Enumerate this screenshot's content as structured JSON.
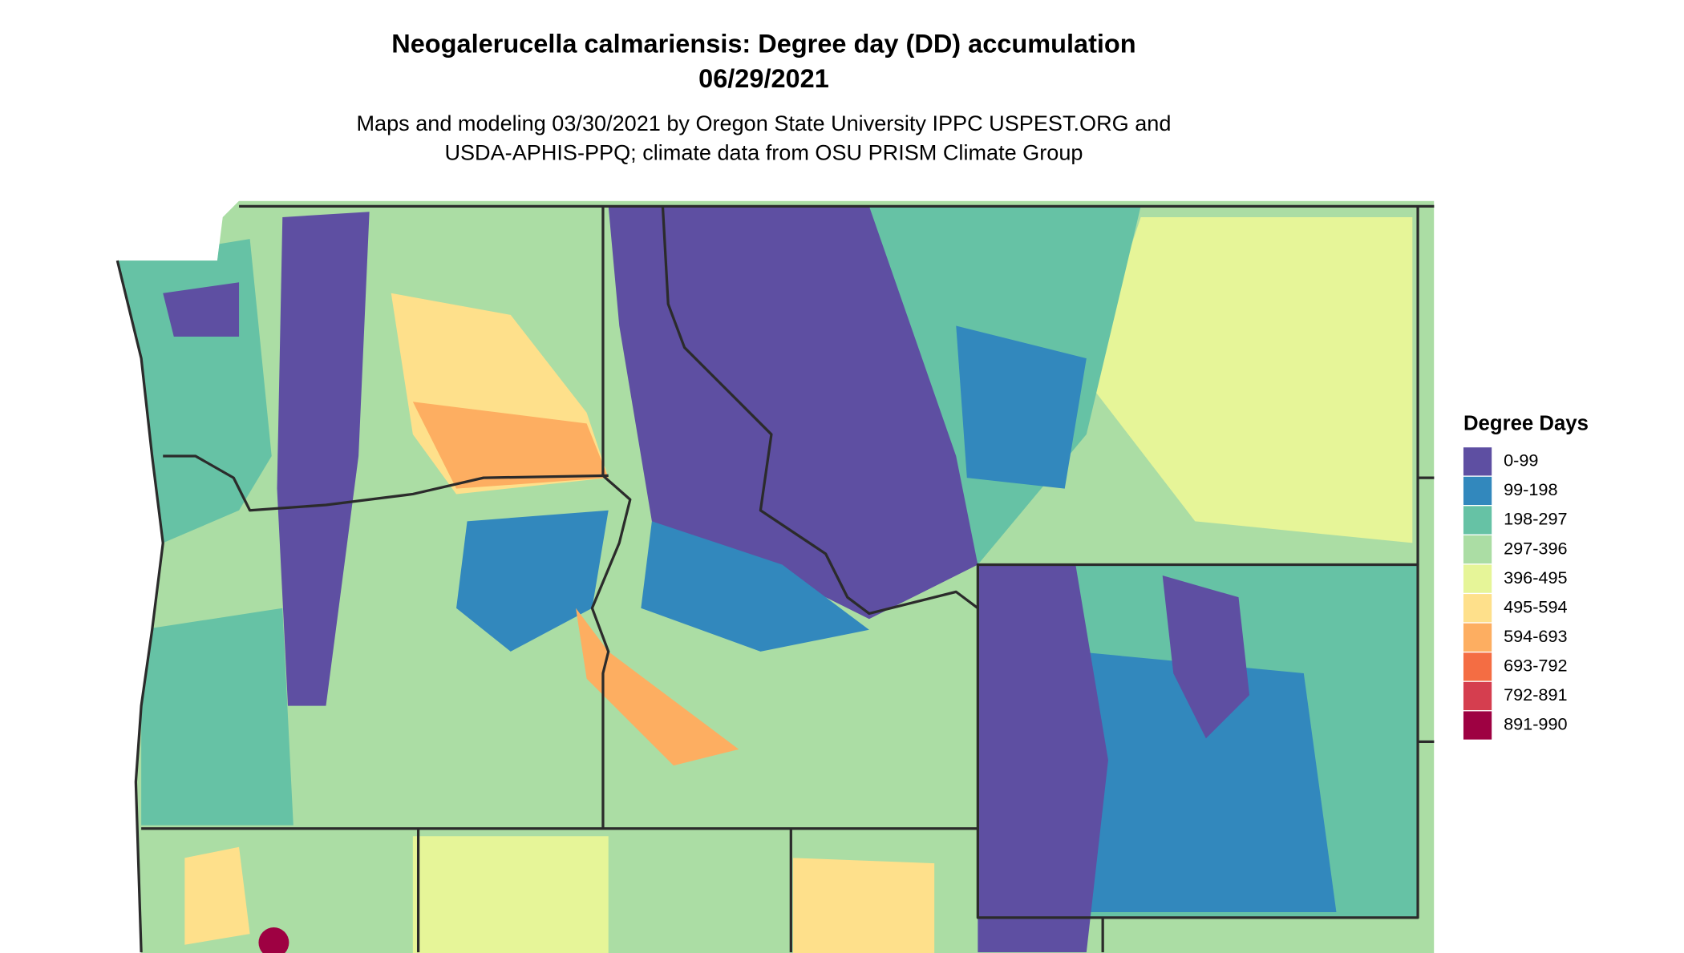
{
  "title": {
    "line1": "Neogalerucella calmariensis: Degree day (DD) accumulation",
    "line2": "06/29/2021"
  },
  "subtitle": {
    "line1": "Maps and modeling 03/30/2021 by Oregon State University IPPC USPEST.ORG and",
    "line2": "USDA-APHIS-PPQ; climate data from OSU PRISM Climate Group"
  },
  "legend": {
    "title": "Degree Days",
    "items": [
      {
        "label": "0-99",
        "color": "#5e4fa2"
      },
      {
        "label": "99-198",
        "color": "#3288bd"
      },
      {
        "label": "198-297",
        "color": "#66c2a5"
      },
      {
        "label": "297-396",
        "color": "#abdda4"
      },
      {
        "label": "396-495",
        "color": "#e6f598"
      },
      {
        "label": "495-594",
        "color": "#fee08b"
      },
      {
        "label": "594-693",
        "color": "#fdae61"
      },
      {
        "label": "693-792",
        "color": "#f46d43"
      },
      {
        "label": "792-891",
        "color": "#d53e4f"
      },
      {
        "label": "891-990",
        "color": "#9e0142"
      }
    ]
  }
}
